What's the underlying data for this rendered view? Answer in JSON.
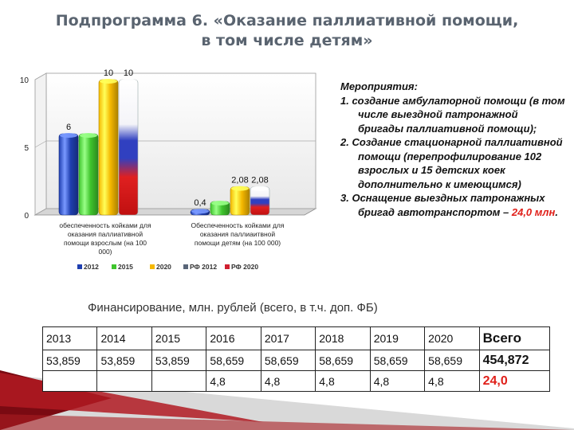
{
  "title": {
    "line1": "Подпрограмма 6.  «Оказание паллиативной помощи,",
    "line2": "в том числе детям»"
  },
  "chart_data": {
    "type": "bar",
    "ylim": [
      0,
      10
    ],
    "yticks": [
      "0",
      "5",
      "10"
    ],
    "categories": [
      "обеспеченность койками для оказания паллиативной помощи взрослым (на 100 000)",
      "Обеспеченность койками для оказания паллиаитвной помощи детям (на 100 000)"
    ],
    "category_lines": [
      [
        "обеспеченность койками для",
        "оказания паллиативной",
        "помощи взрослым (на 100",
        "000)"
      ],
      [
        "Обеспеченность койками для",
        "оказания паллиаитвной",
        "помощи детям (на 100 000)"
      ]
    ],
    "series": [
      {
        "name": "2012",
        "values": [
          6,
          0.4
        ],
        "labels": [
          "6",
          "0,4"
        ],
        "color": "#1f3fb0"
      },
      {
        "name": "2015",
        "values": [
          6,
          1
        ],
        "labels": [
          "",
          ""
        ],
        "color": "#3fc52d"
      },
      {
        "name": "2020",
        "values": [
          10,
          2.08
        ],
        "labels": [
          "10",
          "2,08"
        ],
        "color": "#f5b800"
      },
      {
        "name": "РФ 2012",
        "values": [
          0,
          0
        ],
        "labels": [
          "",
          ""
        ],
        "color": "#596578"
      },
      {
        "name": "РФ 2020",
        "values": [
          10,
          2.08
        ],
        "labels": [
          "10",
          "2,08"
        ],
        "color": "tricolor"
      }
    ],
    "legend_position": "bottom"
  },
  "measures": {
    "heading": "Мероприятия:",
    "item1": "1. создание амбулаторной помощи  (в том числе выездной патронажной бригады паллиативной помощи);",
    "item2": "2. Создание стационарной паллиативной помощи (перепрофилирование 102 взрослых и 15 детских коек дополнительно к имеющимся)",
    "item3_prefix": "3. Оснащение выездных патронажных бригад автотранспортом – ",
    "item3_amount": "24,0 млн",
    "item3_suffix": "."
  },
  "financing": {
    "caption": "Финансирование, млн. рублей (всего, в т.ч. доп. ФБ)",
    "headers": [
      "2013",
      "2014",
      "2015",
      "2016",
      "2017",
      "2018",
      "2019",
      "2020",
      "Всего"
    ],
    "row1": [
      "53,859",
      "53,859",
      "53,859",
      "58,659",
      "58,659",
      "58,659",
      "58,659",
      "58,659",
      "454,872"
    ],
    "row2": [
      "",
      "",
      "",
      "4,8",
      "4,8",
      "4,8",
      "4,8",
      "4,8",
      "24,0"
    ]
  },
  "colors": {
    "accent_red": "#e0201a",
    "title_gray": "#5a6470",
    "stripe_dark_red": "#7a0a12"
  }
}
